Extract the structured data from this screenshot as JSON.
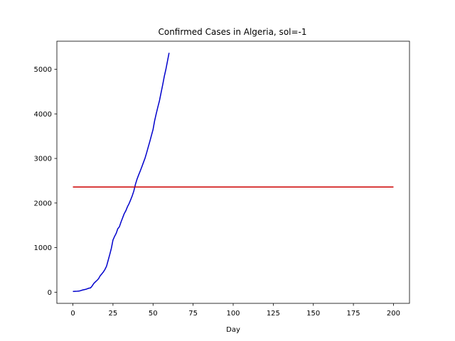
{
  "chart_data": {
    "type": "line",
    "title": "Confirmed Cases in Algeria, sol=-1",
    "xlabel": "Day",
    "ylabel": "",
    "xlim": [
      -10,
      210
    ],
    "ylim": [
      -250,
      5630
    ],
    "x_ticks": [
      0,
      25,
      50,
      75,
      100,
      125,
      150,
      175,
      200
    ],
    "y_ticks": [
      0,
      1000,
      2000,
      3000,
      4000,
      5000
    ],
    "grid": false,
    "legend": "none",
    "series": [
      {
        "color": "#0000cc",
        "x": [
          0,
          2,
          4,
          6,
          8,
          10,
          11,
          12,
          13,
          14,
          15,
          16,
          17,
          18,
          19,
          20,
          21,
          22,
          23,
          24,
          25,
          26,
          27,
          28,
          29,
          30,
          31,
          32,
          33,
          34,
          35,
          36,
          37,
          38,
          39,
          40,
          41,
          42,
          43,
          44,
          45,
          46,
          47,
          48,
          49,
          50,
          51,
          52,
          53,
          54,
          55,
          56,
          57,
          58,
          59,
          60
        ],
        "y": [
          17,
          20,
          26,
          49,
          64,
          90,
          96,
          139,
          194,
          231,
          264,
          302,
          367,
          409,
          454,
          511,
          584,
          716,
          847,
          986,
          1171,
          1251,
          1320,
          1423,
          1468,
          1572,
          1666,
          1761,
          1825,
          1914,
          1983,
          2070,
          2160,
          2268,
          2418,
          2534,
          2629,
          2718,
          2811,
          2910,
          3007,
          3127,
          3256,
          3382,
          3517,
          3649,
          3848,
          4006,
          4154,
          4295,
          4474,
          4648,
          4838,
          4997,
          5182,
          5369
        ]
      },
      {
        "color": "#cc0000",
        "x": [
          0,
          200
        ],
        "y": [
          2360,
          2360
        ]
      }
    ]
  }
}
